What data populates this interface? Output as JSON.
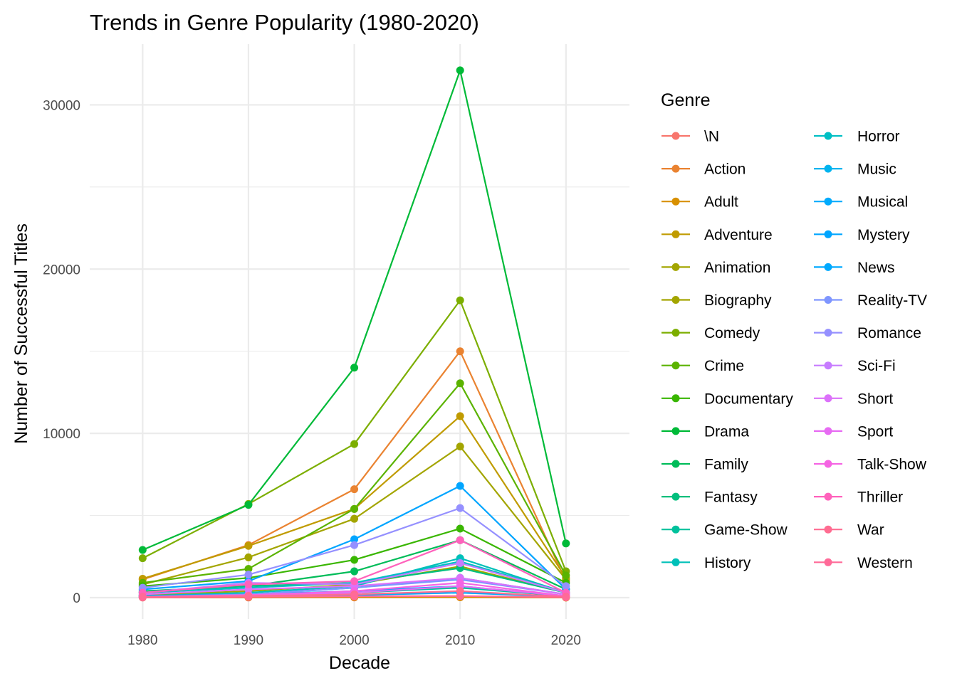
{
  "chart_data": {
    "type": "line",
    "title": "Trends in Genre Popularity (1980-2020)",
    "xlabel": "Decade",
    "ylabel": "Number of Successful Titles",
    "x": [
      1980,
      1990,
      2000,
      2010,
      2020
    ],
    "x_ticks": [
      "1980",
      "1990",
      "2000",
      "2010",
      "2020"
    ],
    "y_ticks": [
      "0",
      "10000",
      "20000",
      "30000"
    ],
    "xlim": [
      1975,
      2026
    ],
    "ylim": [
      -1300,
      33700
    ],
    "grid": true,
    "legend_title": "Genre",
    "legend_position": "right",
    "series": [
      {
        "name": "\\N",
        "color": "#F8766D",
        "values": [
          5,
          8,
          12,
          20,
          3
        ]
      },
      {
        "name": "Action",
        "color": "#EA8331",
        "values": [
          1100,
          3200,
          6600,
          15000,
          1000
        ]
      },
      {
        "name": "Adult",
        "color": "#D89000",
        "values": [
          50,
          20,
          30,
          30,
          5
        ]
      },
      {
        "name": "Adventure",
        "color": "#C09B00",
        "values": [
          1150,
          3150,
          5400,
          11050,
          1200
        ]
      },
      {
        "name": "Animation",
        "color": "#A3A500",
        "values": [
          800,
          2450,
          4800,
          9200,
          1100
        ]
      },
      {
        "name": "Biography",
        "color": "#A3A500",
        "values": [
          150,
          400,
          800,
          1900,
          300
        ]
      },
      {
        "name": "Comedy",
        "color": "#7CAE00",
        "values": [
          2400,
          5700,
          9350,
          18100,
          1600
        ]
      },
      {
        "name": "Crime",
        "color": "#5BB300",
        "values": [
          900,
          1750,
          5400,
          13050,
          1350
        ]
      },
      {
        "name": "Documentary",
        "color": "#39B600",
        "values": [
          700,
          1200,
          2300,
          4200,
          900
        ]
      },
      {
        "name": "Drama",
        "color": "#00BA38",
        "values": [
          2900,
          5650,
          14000,
          32100,
          3300
        ]
      },
      {
        "name": "Family",
        "color": "#00BC59",
        "values": [
          400,
          700,
          1600,
          3500,
          500
        ]
      },
      {
        "name": "Fantasy",
        "color": "#00BF7D",
        "values": [
          300,
          700,
          900,
          1800,
          300
        ]
      },
      {
        "name": "Game-Show",
        "color": "#00C19C",
        "values": [
          50,
          100,
          300,
          600,
          100
        ]
      },
      {
        "name": "History",
        "color": "#00C0B8",
        "values": [
          100,
          300,
          700,
          2400,
          300
        ]
      },
      {
        "name": "Horror",
        "color": "#00BFC4",
        "values": [
          300,
          600,
          900,
          2200,
          300
        ]
      },
      {
        "name": "Music",
        "color": "#00B4EF",
        "values": [
          100,
          200,
          600,
          1200,
          200
        ]
      },
      {
        "name": "Musical",
        "color": "#00ABFD",
        "values": [
          50,
          80,
          150,
          300,
          50
        ]
      },
      {
        "name": "Mystery",
        "color": "#00A5FF",
        "values": [
          500,
          1000,
          3550,
          6800,
          500
        ]
      },
      {
        "name": "News",
        "color": "#00A9FF",
        "values": [
          100,
          200,
          400,
          700,
          100
        ]
      },
      {
        "name": "Reality-TV",
        "color": "#7F96FF",
        "values": [
          50,
          200,
          600,
          1100,
          200
        ]
      },
      {
        "name": "Romance",
        "color": "#9590FF",
        "values": [
          600,
          1400,
          3200,
          5450,
          700
        ]
      },
      {
        "name": "Sci-Fi",
        "color": "#C77CFF",
        "values": [
          300,
          900,
          800,
          2100,
          300
        ]
      },
      {
        "name": "Short",
        "color": "#DC71FA",
        "values": [
          200,
          500,
          700,
          1200,
          200
        ]
      },
      {
        "name": "Sport",
        "color": "#E76BF3",
        "values": [
          50,
          100,
          300,
          700,
          100
        ]
      },
      {
        "name": "Talk-Show",
        "color": "#F564E3",
        "values": [
          50,
          150,
          400,
          900,
          100
        ]
      },
      {
        "name": "Thriller",
        "color": "#FF62BC",
        "values": [
          300,
          800,
          1000,
          3500,
          300
        ]
      },
      {
        "name": "War",
        "color": "#FF6C91",
        "values": [
          50,
          100,
          200,
          400,
          50
        ]
      },
      {
        "name": "Western",
        "color": "#FF6A98",
        "values": [
          30,
          50,
          80,
          100,
          20
        ]
      }
    ]
  }
}
